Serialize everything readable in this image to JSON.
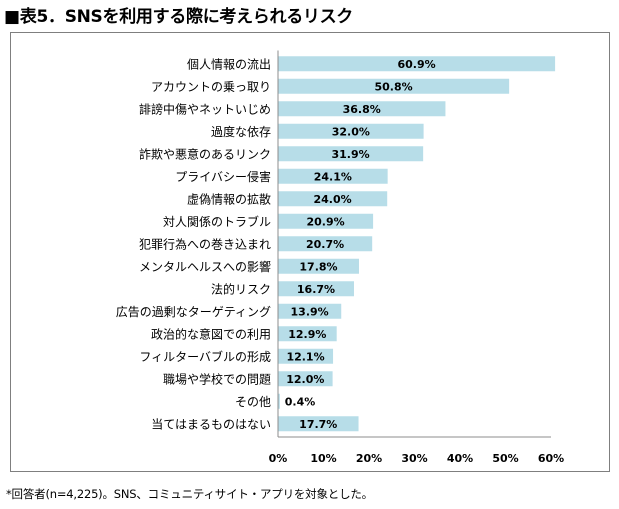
{
  "title": "■表5．SNSを利用する際に考えられるリスク",
  "note": "*回答者(n=4,225)。SNS、コミュニティサイト・アプリを対象とした。",
  "chart_data": {
    "type": "bar",
    "orientation": "horizontal",
    "categories": [
      "個人情報の流出",
      "アカウントの乗っ取り",
      "誹謗中傷やネットいじめ",
      "過度な依存",
      "詐欺や悪意のあるリンク",
      "プライバシー侵害",
      "虚偽情報の拡散",
      "対人関係のトラブル",
      "犯罪行為への巻き込まれ",
      "メンタルヘルスへの影響",
      "法的リスク",
      "広告の過剰なターゲティング",
      "政治的な意図での利用",
      "フィルターバブルの形成",
      "職場や学校での問題",
      "その他",
      "当てはまるものはない"
    ],
    "values": [
      60.9,
      50.8,
      36.8,
      32.0,
      31.9,
      24.1,
      24.0,
      20.9,
      20.7,
      17.8,
      16.7,
      13.9,
      12.9,
      12.1,
      12.0,
      0.4,
      17.7
    ],
    "value_labels": [
      "60.9%",
      "50.8%",
      "36.8%",
      "32.0%",
      "31.9%",
      "24.1%",
      "24.0%",
      "20.9%",
      "20.7%",
      "17.8%",
      "16.7%",
      "13.9%",
      "12.9%",
      "12.1%",
      "12.0%",
      "0.4%",
      "17.7%"
    ],
    "x_ticks": [
      "0%",
      "10%",
      "20%",
      "30%",
      "40%",
      "50%",
      "60%"
    ],
    "xlim": [
      0,
      60
    ],
    "bar_color": "#b7dde8",
    "grid": false,
    "legend": "none"
  }
}
